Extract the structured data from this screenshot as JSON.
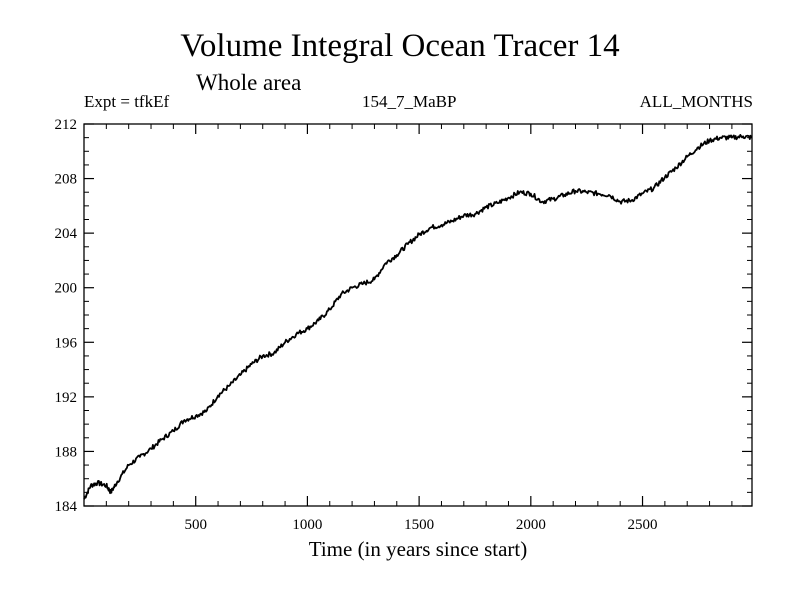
{
  "chart_data": {
    "type": "line",
    "title": "Volume Integral Ocean Tracer 14",
    "subtitle": "Whole area",
    "info_left": "Expt = tfkEf",
    "info_center": "154_7_MaBP",
    "info_right": "ALL_MONTHS",
    "xlabel": "Time (in years since start)",
    "ylabel": "",
    "xlim": [
      0,
      2990
    ],
    "ylim": [
      184,
      212
    ],
    "x_ticks": [
      500,
      1000,
      1500,
      2000,
      2500
    ],
    "y_ticks": [
      184,
      188,
      192,
      196,
      200,
      204,
      208,
      212
    ],
    "grid": false,
    "line_color": "#000000",
    "series": [
      {
        "x": [
          0,
          30,
          60,
          100,
          120,
          150,
          200,
          250,
          300,
          350,
          400,
          450,
          500,
          550,
          600,
          650,
          700,
          750,
          800,
          850,
          900,
          950,
          1000,
          1050,
          1100,
          1150,
          1200,
          1250,
          1300,
          1350,
          1400,
          1450,
          1500,
          1550,
          1600,
          1650,
          1700,
          1750,
          1800,
          1850,
          1900,
          1950,
          2000,
          2050,
          2100,
          2150,
          2200,
          2250,
          2300,
          2350,
          2400,
          2450,
          2500,
          2550,
          2600,
          2650,
          2700,
          2750,
          2800,
          2850,
          2900,
          2950,
          2990
        ],
        "y": [
          184.5,
          185.5,
          185.7,
          185.5,
          185.0,
          185.8,
          187.0,
          187.6,
          188.2,
          188.9,
          189.5,
          190.3,
          190.6,
          191.0,
          192.1,
          192.8,
          193.6,
          194.4,
          195.0,
          195.2,
          196.0,
          196.6,
          197.0,
          197.6,
          198.4,
          199.5,
          200.0,
          200.3,
          200.6,
          201.8,
          202.4,
          203.2,
          203.9,
          204.4,
          204.6,
          204.9,
          205.3,
          205.4,
          205.9,
          206.2,
          206.6,
          207.0,
          206.9,
          206.3,
          206.5,
          206.8,
          207.1,
          207.0,
          206.9,
          206.8,
          206.3,
          206.4,
          206.9,
          207.3,
          208.1,
          208.8,
          209.6,
          210.3,
          210.8,
          211.0,
          211.0,
          211.1,
          211.0
        ]
      }
    ]
  }
}
